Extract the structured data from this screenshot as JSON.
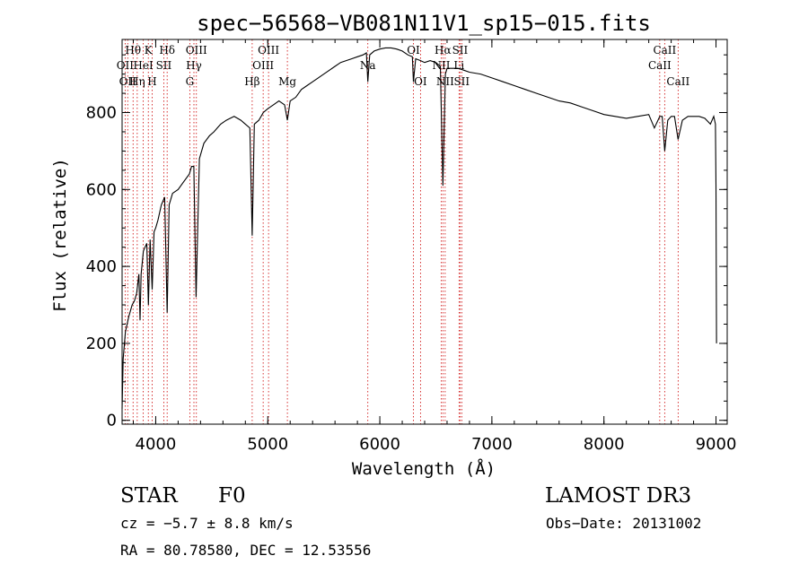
{
  "chart_data": {
    "type": "line",
    "title": "spec−56568−VB081N11V1_sp15−015.fits",
    "xlabel": "Wavelength (Å)",
    "ylabel": "Flux (relative)",
    "xlim": [
      3700,
      9100
    ],
    "ylim": [
      -10,
      990
    ],
    "xticks": [
      4000,
      5000,
      6000,
      7000,
      8000,
      9000
    ],
    "yticks": [
      0,
      200,
      400,
      600,
      800
    ],
    "line_color": "#000000",
    "marker_color": "#cc0000",
    "spectrum": {
      "x": [
        3700,
        3710,
        3730,
        3760,
        3790,
        3810,
        3830,
        3850,
        3860,
        3870,
        3890,
        3920,
        3935,
        3950,
        3968,
        3985,
        4000,
        4020,
        4050,
        4080,
        4102,
        4120,
        4150,
        4200,
        4250,
        4300,
        4320,
        4340,
        4360,
        4390,
        4430,
        4480,
        4520,
        4580,
        4630,
        4700,
        4760,
        4800,
        4840,
        4861,
        4880,
        4920,
        4960,
        5000,
        5050,
        5100,
        5150,
        5175,
        5200,
        5250,
        5300,
        5350,
        5400,
        5450,
        5500,
        5550,
        5600,
        5650,
        5700,
        5750,
        5800,
        5850,
        5880,
        5893,
        5910,
        5950,
        6000,
        6050,
        6100,
        6150,
        6200,
        6250,
        6290,
        6300,
        6320,
        6363,
        6400,
        6450,
        6500,
        6540,
        6556,
        6563,
        6570,
        6585,
        6600,
        6650,
        6700,
        6750,
        6800,
        6900,
        7000,
        7100,
        7200,
        7300,
        7400,
        7500,
        7600,
        7700,
        7800,
        7900,
        8000,
        8100,
        8200,
        8300,
        8400,
        8450,
        8498,
        8520,
        8542,
        8570,
        8600,
        8630,
        8662,
        8700,
        8750,
        8800,
        8850,
        8900,
        8950,
        8980,
        8995,
        9000,
        9005
      ],
      "y": [
        30,
        160,
        230,
        270,
        300,
        310,
        330,
        380,
        260,
        380,
        440,
        460,
        300,
        470,
        340,
        490,
        500,
        520,
        560,
        580,
        280,
        560,
        590,
        600,
        620,
        640,
        660,
        660,
        320,
        680,
        720,
        740,
        750,
        770,
        780,
        790,
        780,
        770,
        760,
        480,
        770,
        780,
        800,
        810,
        820,
        830,
        820,
        780,
        830,
        840,
        860,
        870,
        880,
        890,
        900,
        910,
        920,
        930,
        935,
        940,
        945,
        950,
        955,
        880,
        950,
        960,
        965,
        968,
        968,
        965,
        960,
        950,
        945,
        880,
        940,
        935,
        930,
        935,
        930,
        920,
        700,
        610,
        700,
        900,
        915,
        915,
        915,
        910,
        905,
        900,
        890,
        880,
        870,
        860,
        850,
        840,
        830,
        825,
        815,
        805,
        795,
        790,
        785,
        790,
        795,
        760,
        790,
        790,
        700,
        780,
        790,
        790,
        730,
        780,
        790,
        790,
        790,
        785,
        770,
        790,
        770,
        610,
        200
      ]
    },
    "line_markers": [
      {
        "x": 3727,
        "label": "OII",
        "row": 2
      },
      {
        "x": 3750,
        "label": "OII",
        "row": 3
      },
      {
        "x": 3798,
        "label": "Hθ",
        "row": 1
      },
      {
        "x": 3835,
        "label": "Hη",
        "row": 3
      },
      {
        "x": 3889,
        "label": "HeI",
        "row": 2
      },
      {
        "x": 3934,
        "label": "K",
        "row": 1
      },
      {
        "x": 3968,
        "label": "H",
        "row": 3
      },
      {
        "x": 4072,
        "label": "SII",
        "row": 2
      },
      {
        "x": 4102,
        "label": "Hδ",
        "row": 1
      },
      {
        "x": 4304,
        "label": "G",
        "row": 3
      },
      {
        "x": 4341,
        "label": "Hγ",
        "row": 2
      },
      {
        "x": 4363,
        "label": "OIII",
        "row": 1
      },
      {
        "x": 4861,
        "label": "Hβ",
        "row": 3
      },
      {
        "x": 4959,
        "label": "OIII",
        "row": 2
      },
      {
        "x": 5007,
        "label": "OIII",
        "row": 1
      },
      {
        "x": 5175,
        "label": "Mg",
        "row": 3
      },
      {
        "x": 5893,
        "label": "Na",
        "row": 2
      },
      {
        "x": 6300,
        "label": "OI",
        "row": 1
      },
      {
        "x": 6363,
        "label": "OI",
        "row": 3
      },
      {
        "x": 6548,
        "label": "NII",
        "row": 2
      },
      {
        "x": 6563,
        "label": "Hα",
        "row": 1
      },
      {
        "x": 6583,
        "label": "NII",
        "row": 3
      },
      {
        "x": 6707,
        "label": "Li",
        "row": 2
      },
      {
        "x": 6716,
        "label": "SII",
        "row": 1
      },
      {
        "x": 6731,
        "label": "SII",
        "row": 3
      },
      {
        "x": 8498,
        "label": "CaII",
        "row": 2
      },
      {
        "x": 8542,
        "label": "CaII",
        "row": 1
      },
      {
        "x": 8662,
        "label": "CaII",
        "row": 3
      }
    ]
  },
  "footer": {
    "object_type": "STAR",
    "subclass": "F0",
    "survey": "LAMOST DR3",
    "redshift": "cz = −5.7 ± 8.8 km/s",
    "obs_date": "Obs−Date: 20131002",
    "coords": "RA =  80.78580, DEC =  12.53556"
  }
}
